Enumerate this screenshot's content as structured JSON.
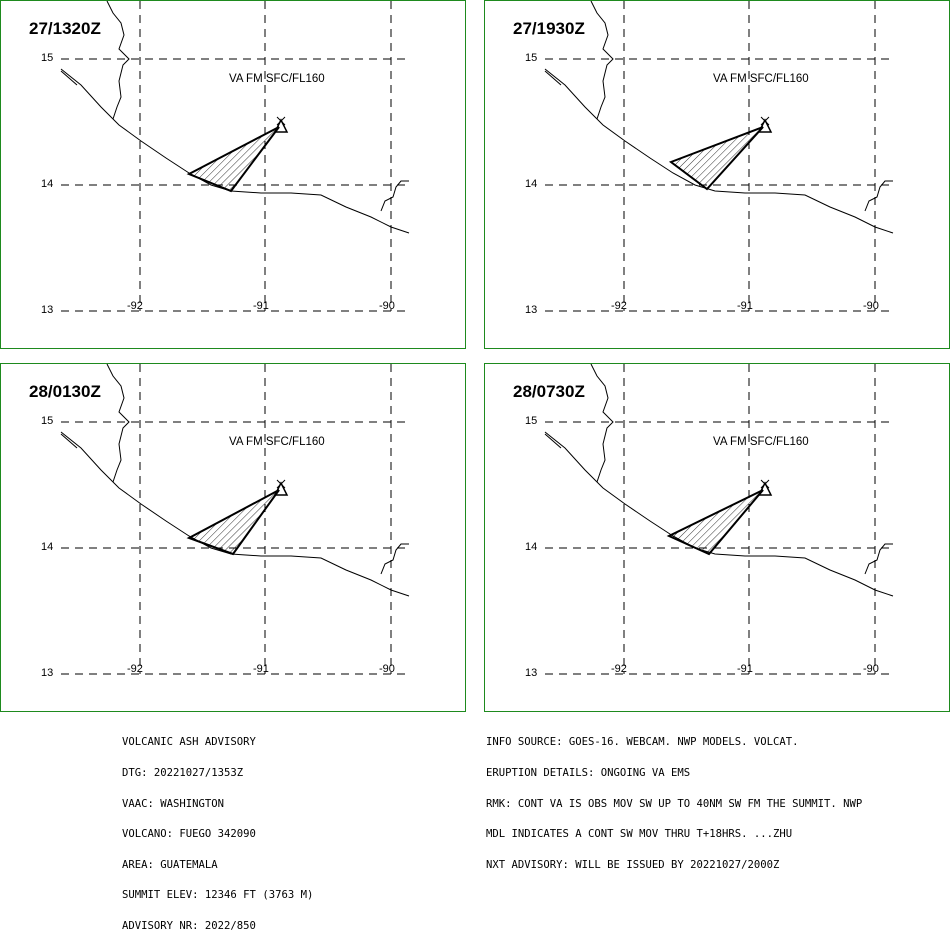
{
  "panels": [
    {
      "time": "27/1320Z",
      "va_level": "VA FM SFC/FL160"
    },
    {
      "time": "27/1930Z",
      "va_level": "VA FM SFC/FL160"
    },
    {
      "time": "28/0130Z",
      "va_level": "VA FM SFC/FL160"
    },
    {
      "time": "28/0730Z",
      "va_level": "VA FM SFC/FL160"
    }
  ],
  "lat_ticks": [
    "15",
    "14",
    "13"
  ],
  "lon_ticks": [
    "-92",
    "-91",
    "-90"
  ],
  "advisory_left": [
    "VOLCANIC ASH ADVISORY",
    "DTG: 20221027/1353Z",
    "VAAC: WASHINGTON",
    "VOLCANO: FUEGO 342090",
    "AREA: GUATEMALA",
    "SUMMIT ELEV: 12346 FT (3763 M)",
    "ADVISORY NR: 2022/850"
  ],
  "advisory_right": [
    "INFO SOURCE: GOES-16. WEBCAM. NWP MODELS. VOLCAT.",
    "ERUPTION DETAILS: ONGOING VA EMS",
    "RMK: CONT VA IS OBS MOV SW UP TO 40NM SW FM THE SUMMIT. NWP",
    "MDL INDICATES A CONT SW MOV THRU T+18HRS. ...ZHU",
    "NXT ADVISORY: WILL BE ISSUED BY 20221027/2000Z"
  ],
  "colors": {
    "panel_border": "#1e8a1e",
    "lines": "#000000"
  }
}
